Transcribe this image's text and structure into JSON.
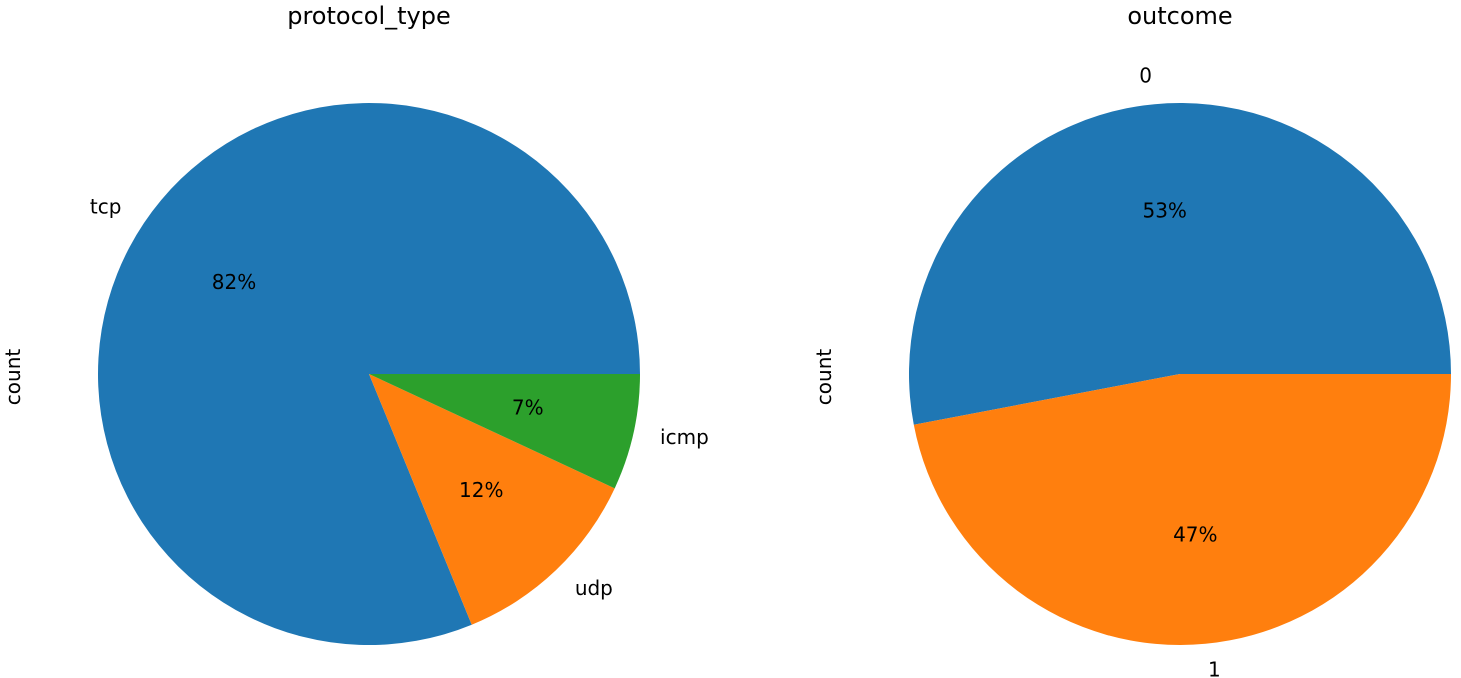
{
  "chart_data": [
    {
      "type": "pie",
      "title": "protocol_type",
      "ylabel": "count",
      "categories": [
        "tcp",
        "udp",
        "icmp"
      ],
      "values": [
        82,
        12,
        7
      ],
      "percent_labels": [
        "82%",
        "12%",
        "7%"
      ],
      "colors": [
        "#1f77b4",
        "#ff7f0e",
        "#2ca02c"
      ],
      "start_angle_deg": 0,
      "direction": "counterclockwise",
      "legend": "none"
    },
    {
      "type": "pie",
      "title": "outcome",
      "ylabel": "count",
      "categories": [
        "0",
        "1"
      ],
      "values": [
        53,
        47
      ],
      "percent_labels": [
        "53%",
        "47%"
      ],
      "colors": [
        "#1f77b4",
        "#ff7f0e"
      ],
      "start_angle_deg": 0,
      "direction": "counterclockwise",
      "legend": "none"
    }
  ]
}
